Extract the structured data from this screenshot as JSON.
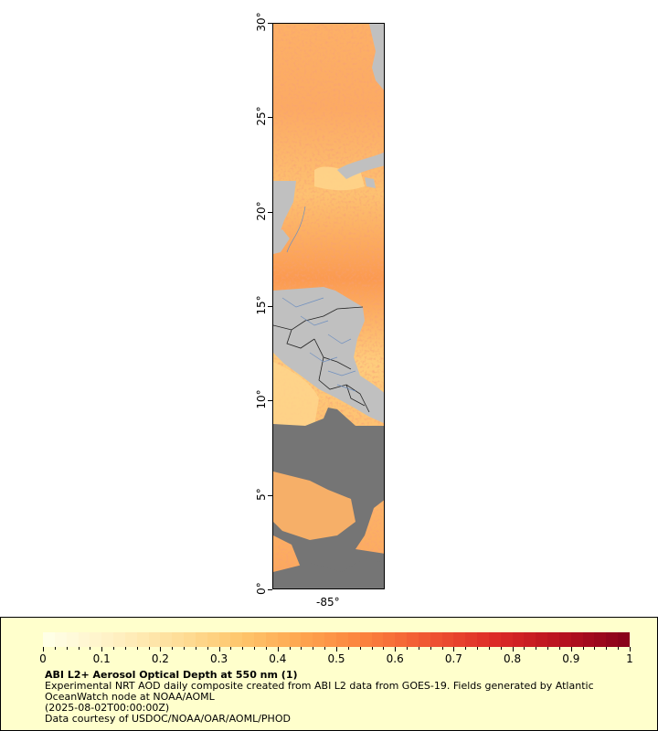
{
  "map": {
    "lat_ticks": [
      "30°",
      "25°",
      "20°",
      "15°",
      "10°",
      "5°",
      "0°"
    ],
    "lon_ticks": [
      "-85°"
    ],
    "lat_range": [
      0,
      30
    ],
    "colors": {
      "land": "#c0c0c0",
      "no_data": "#757575",
      "borders": "#222222",
      "rivers": "#6f8fbf"
    }
  },
  "legend": {
    "colorbar_labels": [
      "0",
      "0.1",
      "0.2",
      "0.3",
      "0.4",
      "0.5",
      "0.6",
      "0.7",
      "0.8",
      "0.9",
      "1"
    ],
    "colorbar_range": [
      0,
      1
    ],
    "colormap": [
      "#ffffe6",
      "#fff1c4",
      "#fedf9a",
      "#fec66c",
      "#fea44e",
      "#fb7f3c",
      "#ef5332",
      "#dc2a27",
      "#b8111f",
      "#8a021b"
    ],
    "title": "ABI L2+ Aerosol Optical Depth at 550 nm (1)",
    "description_line1": "Experimental NRT AOD daily composite created from ABI L2 data from GOES-19. Fields generated by Atlantic",
    "description_line2": "OceanWatch node at NOAA/AOML",
    "date": "(2025-08-02T00:00:00Z)",
    "credit": "Data courtesy of USDOC/NOAA/OAR/AOML/PHOD"
  }
}
